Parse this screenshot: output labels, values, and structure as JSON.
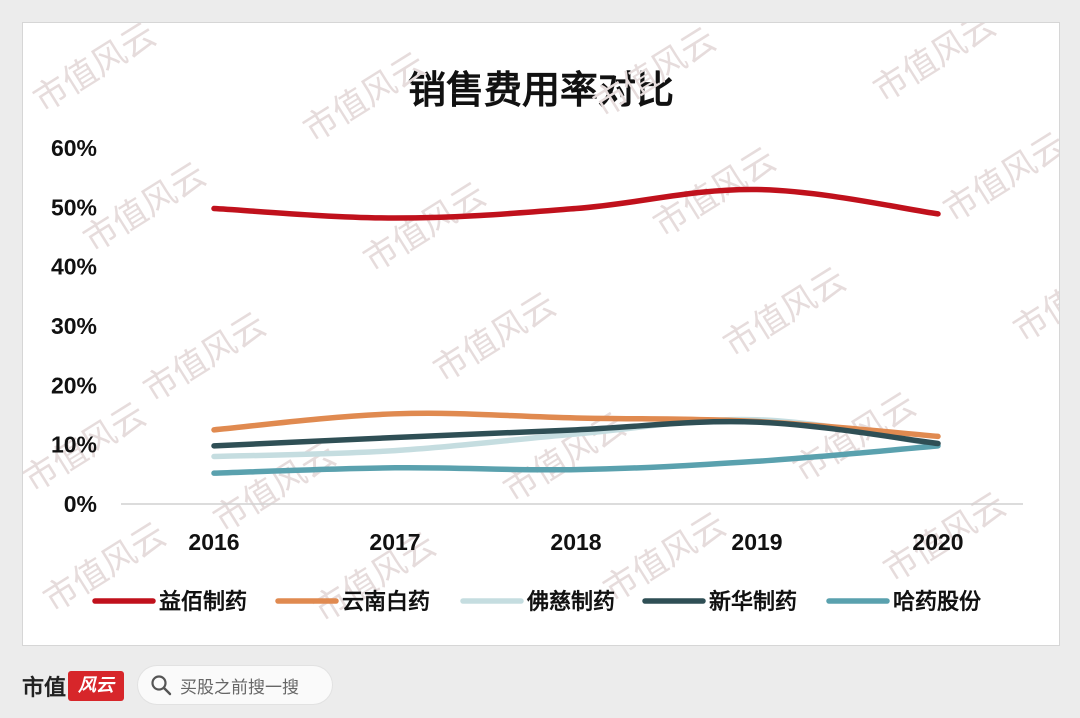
{
  "watermark_text": "市值风云",
  "footer": {
    "brand_name": "市值",
    "brand_mark": "风云",
    "search_placeholder": "买股之前搜一搜"
  },
  "colors": {
    "益佰制药": "#c0111c",
    "云南白药": "#e08a50",
    "佛慈制药": "#c5dde0",
    "新华制药": "#2f4f55",
    "哈药股份": "#5aa1ae"
  },
  "chart_data": {
    "type": "line",
    "title": "销售费用率对比",
    "xlabel": "",
    "ylabel": "",
    "categories": [
      "2016",
      "2017",
      "2018",
      "2019",
      "2020"
    ],
    "ylim": [
      0,
      60
    ],
    "yticks": [
      "0%",
      "10%",
      "20%",
      "30%",
      "40%",
      "50%",
      "60%"
    ],
    "y_unit": "%",
    "grid": false,
    "smooth": true,
    "legend_position": "bottom",
    "series": [
      {
        "name": "益佰制药",
        "values": [
          49.8,
          48.2,
          49.8,
          53.0,
          48.9
        ]
      },
      {
        "name": "云南白药",
        "values": [
          12.5,
          15.2,
          14.5,
          13.9,
          11.4
        ]
      },
      {
        "name": "佛慈制药",
        "values": [
          8.0,
          9.0,
          11.8,
          14.2,
          10.0
        ]
      },
      {
        "name": "新华制药",
        "values": [
          9.8,
          11.2,
          12.5,
          13.8,
          10.2
        ]
      },
      {
        "name": "哈药股份",
        "values": [
          5.2,
          6.1,
          5.8,
          7.2,
          9.8
        ]
      }
    ]
  }
}
